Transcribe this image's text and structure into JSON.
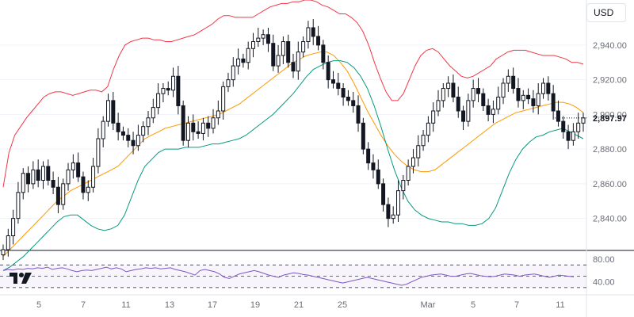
{
  "toolbar": {
    "currency": "USD"
  },
  "colors": {
    "up": "#131722",
    "down": "#131722",
    "upper_band": "#f23645",
    "lower_band": "#089981",
    "basis": "#ff9800",
    "rsi": "#7e57c2",
    "grid": "#f0f3fa",
    "axis_text": "#6a6d78"
  },
  "logo": {
    "icon": "tradingview-logo-icon"
  },
  "chart_data": [
    {
      "type": "candlestick",
      "title": "",
      "x_ticks": [
        "5",
        "7",
        "11",
        "13",
        "17",
        "19",
        "21",
        "25",
        "Mar",
        "5",
        "7",
        "11"
      ],
      "y_ticks": [
        "2,840.00",
        "2,860.00",
        "2,880.00",
        "2,900.00",
        "2,920.00",
        "2,940.00"
      ],
      "y_tick_values": [
        2840,
        2860,
        2880,
        2900,
        2920,
        2940
      ],
      "ylim": [
        2822,
        2966
      ],
      "last_price": "2,897.97",
      "last_price_value": 2897.97,
      "closes": [
        2822,
        2830,
        2840,
        2855,
        2866,
        2860,
        2868,
        2862,
        2870,
        2862,
        2858,
        2848,
        2860,
        2868,
        2872,
        2864,
        2855,
        2858,
        2870,
        2886,
        2896,
        2908,
        2895,
        2890,
        2888,
        2885,
        2882,
        2888,
        2893,
        2898,
        2904,
        2912,
        2915,
        2914,
        2922,
        2905,
        2885,
        2895,
        2890,
        2889,
        2895,
        2892,
        2898,
        2902,
        2916,
        2920,
        2928,
        2932,
        2930,
        2938,
        2942,
        2944,
        2946,
        2941,
        2928,
        2934,
        2942,
        2930,
        2925,
        2936,
        2942,
        2950,
        2945,
        2940,
        2930,
        2920,
        2918,
        2915,
        2910,
        2908,
        2905,
        2895,
        2880,
        2872,
        2868,
        2860,
        2848,
        2840,
        2842,
        2856,
        2862,
        2870,
        2875,
        2882,
        2888,
        2895,
        2902,
        2908,
        2915,
        2918,
        2910,
        2902,
        2896,
        2908,
        2915,
        2912,
        2905,
        2900,
        2903,
        2910,
        2918,
        2922,
        2915,
        2908,
        2911,
        2909,
        2905,
        2912,
        2918,
        2912,
        2902,
        2896,
        2890,
        2885,
        2890,
        2895,
        2898
      ],
      "upper_band": [
        2858,
        2878,
        2888,
        2893,
        2898,
        2902,
        2906,
        2910,
        2912,
        2913,
        2913,
        2912,
        2911,
        2912,
        2913,
        2914,
        2914,
        2913,
        2916,
        2926,
        2934,
        2940,
        2942,
        2943,
        2944,
        2944,
        2943,
        2943,
        2942,
        2942,
        2943,
        2944,
        2945,
        2946,
        2948,
        2950,
        2952,
        2955,
        2957,
        2957,
        2956,
        2956,
        2956,
        2956,
        2958,
        2960,
        2962,
        2963,
        2964,
        2964,
        2965,
        2965,
        2966,
        2966,
        2965,
        2963,
        2962,
        2960,
        2958,
        2958,
        2956,
        2953,
        2948,
        2940,
        2930,
        2921,
        2913,
        2908,
        2908,
        2912,
        2920,
        2928,
        2934,
        2937,
        2938,
        2936,
        2932,
        2928,
        2925,
        2922,
        2921,
        2922,
        2924,
        2926,
        2928,
        2932,
        2934,
        2936,
        2937,
        2937,
        2937,
        2936,
        2935,
        2934,
        2934,
        2934,
        2933,
        2932,
        2930,
        2930,
        2929
      ],
      "lower_band": [
        2810,
        2812,
        2815,
        2818,
        2822,
        2826,
        2830,
        2834,
        2838,
        2841,
        2842,
        2842,
        2839,
        2836,
        2834,
        2833,
        2834,
        2836,
        2842,
        2852,
        2862,
        2870,
        2874,
        2878,
        2880,
        2880,
        2880,
        2881,
        2881,
        2881,
        2882,
        2883,
        2883,
        2884,
        2885,
        2886,
        2888,
        2891,
        2894,
        2897,
        2900,
        2904,
        2908,
        2912,
        2917,
        2922,
        2926,
        2928,
        2930,
        2931,
        2931,
        2930,
        2927,
        2922,
        2915,
        2905,
        2893,
        2880,
        2868,
        2858,
        2850,
        2845,
        2842,
        2840,
        2839,
        2838,
        2838,
        2837,
        2837,
        2836,
        2836,
        2837,
        2840,
        2846,
        2856,
        2866,
        2874,
        2880,
        2884,
        2887,
        2888,
        2890,
        2891,
        2892,
        2890,
        2888,
        2886
      ],
      "basis": [
        2818,
        2822,
        2826,
        2830,
        2834,
        2838,
        2842,
        2846,
        2850,
        2853,
        2856,
        2858,
        2860,
        2862,
        2864,
        2866,
        2868,
        2870,
        2874,
        2878,
        2882,
        2886,
        2888,
        2890,
        2892,
        2893,
        2894,
        2895,
        2896,
        2897,
        2898,
        2899,
        2900,
        2902,
        2904,
        2906,
        2909,
        2912,
        2915,
        2918,
        2921,
        2924,
        2927,
        2930,
        2932,
        2934,
        2935,
        2936,
        2936,
        2934,
        2930,
        2925,
        2918,
        2910,
        2902,
        2895,
        2888,
        2882,
        2877,
        2873,
        2870,
        2868,
        2867,
        2867,
        2868,
        2871,
        2874,
        2877,
        2880,
        2883,
        2886,
        2889,
        2892,
        2895,
        2897,
        2899,
        2901,
        2902,
        2903,
        2904,
        2905,
        2906,
        2907,
        2907,
        2906,
        2904,
        2901
      ],
      "annotations": []
    },
    {
      "type": "line",
      "title": "",
      "y_ticks": [
        "80.00",
        "40.00"
      ],
      "y_tick_values": [
        80,
        40
      ],
      "levels": [
        70,
        50,
        30
      ],
      "ylim": [
        20,
        90
      ],
      "series": [
        {
          "values": [
            60,
            62,
            61,
            63,
            62,
            64,
            63,
            65,
            64,
            66,
            62,
            64,
            65,
            63,
            60,
            58,
            60,
            61,
            60,
            62,
            64,
            66,
            63,
            65,
            63,
            58,
            60,
            62,
            63,
            65,
            64,
            65,
            63,
            64,
            65,
            62,
            60,
            58,
            55,
            52,
            60,
            62,
            60,
            58,
            54,
            48,
            46,
            50,
            54,
            56,
            58,
            60,
            58,
            55,
            52,
            50,
            48,
            52,
            54,
            56,
            55,
            53,
            52,
            50,
            48,
            46,
            44,
            42,
            40,
            38,
            40,
            42,
            44,
            46,
            48,
            46,
            44,
            42,
            40,
            38,
            36,
            34,
            36,
            40,
            44,
            48,
            50,
            52,
            53,
            54,
            52,
            50,
            50,
            52,
            54,
            55,
            53,
            51,
            50,
            49,
            50,
            52,
            54,
            53,
            52,
            50,
            52,
            53,
            54,
            52,
            50,
            48,
            50,
            52,
            51,
            50,
            49
          ]
        }
      ]
    }
  ]
}
